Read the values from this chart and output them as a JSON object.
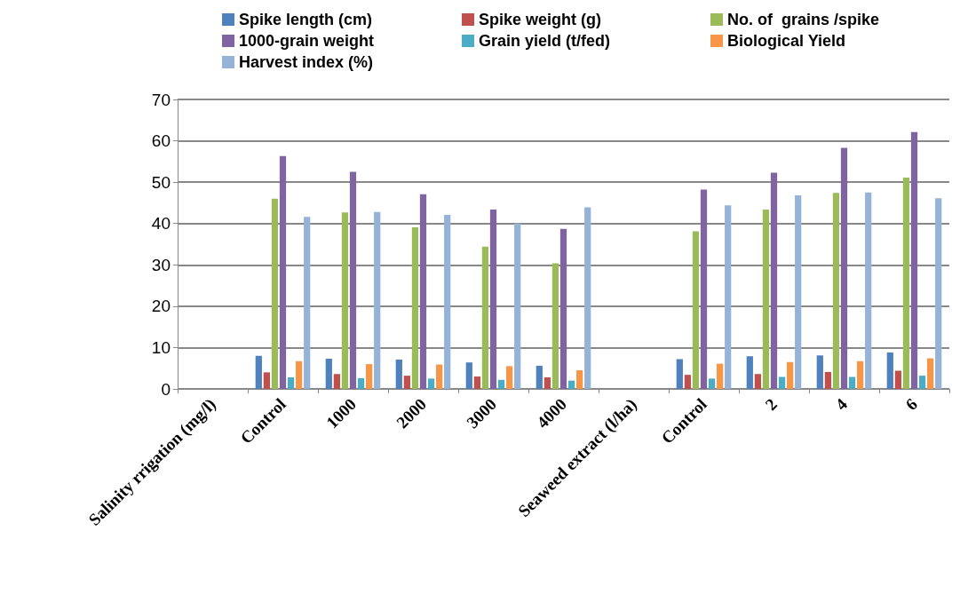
{
  "chart_data": {
    "type": "bar",
    "categories": [
      "Salinity rrigation (mg/l)",
      "Control",
      "1000",
      "2000",
      "3000",
      "4000",
      "Seaweed extract (l/ha)",
      "Control",
      "2",
      "4",
      "6"
    ],
    "series": [
      {
        "name": "Spike length (cm)",
        "color": "#4f81bd",
        "values": [
          null,
          8,
          7.3,
          7.1,
          6.4,
          5.6,
          null,
          7.2,
          7.9,
          8.1,
          8.8
        ]
      },
      {
        "name": "Spike weight (g)",
        "color": "#c0504d",
        "values": [
          null,
          4.0,
          3.6,
          3.2,
          3.0,
          2.8,
          null,
          3.4,
          3.6,
          4.1,
          4.4
        ]
      },
      {
        "name": "No. of  grains /spike",
        "color": "#9bbb59",
        "values": [
          null,
          46,
          42.7,
          39.1,
          34.4,
          30.4,
          null,
          38.1,
          43.4,
          47.4,
          51.1
        ]
      },
      {
        "name": "1000-grain weight",
        "color": "#8064a2",
        "values": [
          null,
          56.3,
          52.5,
          47.1,
          43.4,
          38.7,
          null,
          48.2,
          52.3,
          58.3,
          62.1
        ]
      },
      {
        "name": "Grain yield (t/fed)",
        "color": "#4bacc6",
        "values": [
          null,
          2.8,
          2.6,
          2.5,
          2.2,
          2.0,
          null,
          2.5,
          2.9,
          2.9,
          3.2
        ]
      },
      {
        "name": "Biological Yield",
        "color": "#f79646",
        "values": [
          null,
          6.7,
          6.0,
          5.9,
          5.5,
          4.5,
          null,
          6.1,
          6.5,
          6.7,
          7.4
        ]
      },
      {
        "name": "Harvest index (%)",
        "color": "#95b3d7",
        "values": [
          null,
          41.6,
          42.8,
          42.1,
          40.0,
          43.9,
          null,
          44.4,
          46.8,
          47.5,
          46.1
        ]
      }
    ],
    "ylim": [
      0,
      70
    ],
    "yticks": [
      0,
      10,
      20,
      30,
      40,
      50,
      60,
      70
    ],
    "grid": "y",
    "legend": "top"
  }
}
